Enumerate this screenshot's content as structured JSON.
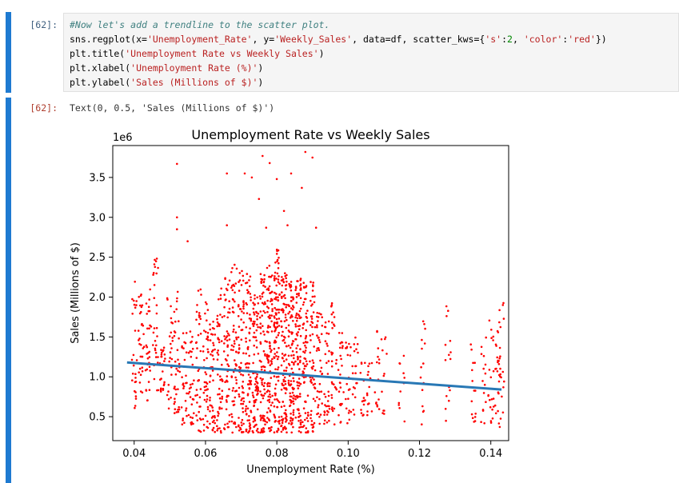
{
  "input_cell": {
    "prompt": "[62]:",
    "lines": [
      {
        "parts": [
          {
            "cls": "c-comment",
            "text": "#Now let's add a trendline to the scatter plot."
          }
        ]
      },
      {
        "parts": [
          {
            "cls": "c-fn",
            "text": "sns.regplot(x="
          },
          {
            "cls": "c-str",
            "text": "'Unemployment_Rate'"
          },
          {
            "cls": "c-fn",
            "text": ", y="
          },
          {
            "cls": "c-str",
            "text": "'Weekly_Sales'"
          },
          {
            "cls": "c-fn",
            "text": ", data=df, scatter_kws={"
          },
          {
            "cls": "c-str",
            "text": "'s'"
          },
          {
            "cls": "c-fn",
            "text": ":"
          },
          {
            "cls": "c-num",
            "text": "2"
          },
          {
            "cls": "c-fn",
            "text": ", "
          },
          {
            "cls": "c-str",
            "text": "'color'"
          },
          {
            "cls": "c-fn",
            "text": ":"
          },
          {
            "cls": "c-str",
            "text": "'red'"
          },
          {
            "cls": "c-fn",
            "text": "})"
          }
        ]
      },
      {
        "parts": [
          {
            "cls": "c-fn",
            "text": "plt.title("
          },
          {
            "cls": "c-str",
            "text": "'Unemployment Rate vs Weekly Sales'"
          },
          {
            "cls": "c-fn",
            "text": ")"
          }
        ]
      },
      {
        "parts": [
          {
            "cls": "c-fn",
            "text": "plt.xlabel("
          },
          {
            "cls": "c-str",
            "text": "'Unemployment Rate (%)'"
          },
          {
            "cls": "c-fn",
            "text": ")"
          }
        ]
      },
      {
        "parts": [
          {
            "cls": "c-fn",
            "text": "plt.ylabel("
          },
          {
            "cls": "c-str",
            "text": "'Sales (Millions of $)'"
          },
          {
            "cls": "c-fn",
            "text": ")"
          }
        ]
      }
    ]
  },
  "output_cell": {
    "prompt": "[62]:",
    "text": "Text(0, 0.5, 'Sales (Millions of $)')"
  },
  "chart_data": {
    "type": "scatter",
    "title": "Unemployment Rate vs Weekly Sales",
    "xlabel": "Unemployment Rate (%)",
    "ylabel": "Sales (Millions of $)",
    "y_offset_label": "1e6",
    "xlim": [
      0.034,
      0.145
    ],
    "ylim": [
      0.2,
      3.9
    ],
    "x_ticks": [
      0.04,
      0.06,
      0.08,
      0.1,
      0.12,
      0.14
    ],
    "x_tick_labels": [
      "0.04",
      "0.06",
      "0.08",
      "0.10",
      "0.12",
      "0.14"
    ],
    "y_ticks": [
      0.5,
      1.0,
      1.5,
      2.0,
      2.5,
      3.0,
      3.5
    ],
    "y_tick_labels": [
      "0.5",
      "1.0",
      "1.5",
      "2.0",
      "2.5",
      "3.0",
      "3.5"
    ],
    "point_color": "#ff0000",
    "trend_color": "#2878b5",
    "trendline": {
      "x": [
        0.038,
        0.143
      ],
      "y": [
        1.18,
        0.84
      ]
    },
    "clusters": [
      {
        "x": 0.04,
        "ymin": 0.5,
        "ymax": 2.2,
        "n": 25
      },
      {
        "x": 0.042,
        "ymin": 0.8,
        "ymax": 2.1,
        "n": 30
      },
      {
        "x": 0.044,
        "ymin": 0.7,
        "ymax": 2.1,
        "n": 30
      },
      {
        "x": 0.046,
        "ymin": 0.8,
        "ymax": 2.5,
        "n": 30
      },
      {
        "x": 0.048,
        "ymin": 0.8,
        "ymax": 1.4,
        "n": 25
      },
      {
        "x": 0.05,
        "ymin": 0.6,
        "ymax": 2.0,
        "n": 25
      },
      {
        "x": 0.052,
        "ymin": 0.5,
        "ymax": 2.1,
        "n": 35
      },
      {
        "x": 0.054,
        "ymin": 0.4,
        "ymax": 1.6,
        "n": 30
      },
      {
        "x": 0.056,
        "ymin": 0.4,
        "ymax": 1.6,
        "n": 30
      },
      {
        "x": 0.058,
        "ymin": 0.3,
        "ymax": 2.1,
        "n": 40
      },
      {
        "x": 0.06,
        "ymin": 0.3,
        "ymax": 2.0,
        "n": 45
      },
      {
        "x": 0.062,
        "ymin": 0.3,
        "ymax": 1.8,
        "n": 45
      },
      {
        "x": 0.064,
        "ymin": 0.3,
        "ymax": 2.2,
        "n": 50
      },
      {
        "x": 0.066,
        "ymin": 0.3,
        "ymax": 2.3,
        "n": 55
      },
      {
        "x": 0.068,
        "ymin": 0.3,
        "ymax": 2.5,
        "n": 60
      },
      {
        "x": 0.07,
        "ymin": 0.3,
        "ymax": 2.4,
        "n": 70
      },
      {
        "x": 0.072,
        "ymin": 0.3,
        "ymax": 2.3,
        "n": 75
      },
      {
        "x": 0.074,
        "ymin": 0.3,
        "ymax": 2.2,
        "n": 80
      },
      {
        "x": 0.076,
        "ymin": 0.3,
        "ymax": 2.3,
        "n": 85
      },
      {
        "x": 0.078,
        "ymin": 0.3,
        "ymax": 2.4,
        "n": 95
      },
      {
        "x": 0.08,
        "ymin": 0.3,
        "ymax": 2.6,
        "n": 110
      },
      {
        "x": 0.082,
        "ymin": 0.3,
        "ymax": 2.3,
        "n": 110
      },
      {
        "x": 0.084,
        "ymin": 0.3,
        "ymax": 2.2,
        "n": 100
      },
      {
        "x": 0.086,
        "ymin": 0.3,
        "ymax": 2.3,
        "n": 85
      },
      {
        "x": 0.088,
        "ymin": 0.3,
        "ymax": 2.2,
        "n": 70
      },
      {
        "x": 0.09,
        "ymin": 0.3,
        "ymax": 2.2,
        "n": 55
      },
      {
        "x": 0.092,
        "ymin": 0.4,
        "ymax": 1.9,
        "n": 40
      },
      {
        "x": 0.094,
        "ymin": 0.4,
        "ymax": 1.7,
        "n": 35
      },
      {
        "x": 0.096,
        "ymin": 0.4,
        "ymax": 2.0,
        "n": 30
      },
      {
        "x": 0.098,
        "ymin": 0.4,
        "ymax": 1.6,
        "n": 25
      },
      {
        "x": 0.1,
        "ymin": 0.4,
        "ymax": 1.5,
        "n": 20
      },
      {
        "x": 0.102,
        "ymin": 0.5,
        "ymax": 1.5,
        "n": 20
      },
      {
        "x": 0.104,
        "ymin": 0.5,
        "ymax": 1.3,
        "n": 15
      },
      {
        "x": 0.106,
        "ymin": 0.5,
        "ymax": 1.2,
        "n": 15
      },
      {
        "x": 0.108,
        "ymin": 0.5,
        "ymax": 1.6,
        "n": 15
      },
      {
        "x": 0.11,
        "ymin": 0.5,
        "ymax": 1.5,
        "n": 12
      },
      {
        "x": 0.115,
        "ymin": 0.4,
        "ymax": 1.5,
        "n": 12
      },
      {
        "x": 0.121,
        "ymin": 0.4,
        "ymax": 1.7,
        "n": 15
      },
      {
        "x": 0.128,
        "ymin": 0.4,
        "ymax": 1.9,
        "n": 15
      },
      {
        "x": 0.135,
        "ymin": 0.4,
        "ymax": 1.5,
        "n": 15
      },
      {
        "x": 0.138,
        "ymin": 0.4,
        "ymax": 1.5,
        "n": 15
      },
      {
        "x": 0.14,
        "ymin": 0.4,
        "ymax": 1.8,
        "n": 20
      },
      {
        "x": 0.142,
        "ymin": 0.3,
        "ymax": 1.6,
        "n": 20
      },
      {
        "x": 0.143,
        "ymin": 0.3,
        "ymax": 2.0,
        "n": 20
      }
    ],
    "outliers": [
      {
        "x": 0.052,
        "y": 3.67
      },
      {
        "x": 0.052,
        "y": 3.0
      },
      {
        "x": 0.052,
        "y": 2.85
      },
      {
        "x": 0.055,
        "y": 2.7
      },
      {
        "x": 0.066,
        "y": 3.55
      },
      {
        "x": 0.066,
        "y": 2.9
      },
      {
        "x": 0.071,
        "y": 3.55
      },
      {
        "x": 0.073,
        "y": 3.5
      },
      {
        "x": 0.075,
        "y": 3.23
      },
      {
        "x": 0.076,
        "y": 3.77
      },
      {
        "x": 0.078,
        "y": 3.68
      },
      {
        "x": 0.08,
        "y": 3.48
      },
      {
        "x": 0.082,
        "y": 3.08
      },
      {
        "x": 0.084,
        "y": 3.55
      },
      {
        "x": 0.087,
        "y": 3.37
      },
      {
        "x": 0.088,
        "y": 3.82
      },
      {
        "x": 0.09,
        "y": 3.75
      },
      {
        "x": 0.083,
        "y": 2.9
      },
      {
        "x": 0.077,
        "y": 2.87
      },
      {
        "x": 0.091,
        "y": 2.87
      }
    ]
  }
}
